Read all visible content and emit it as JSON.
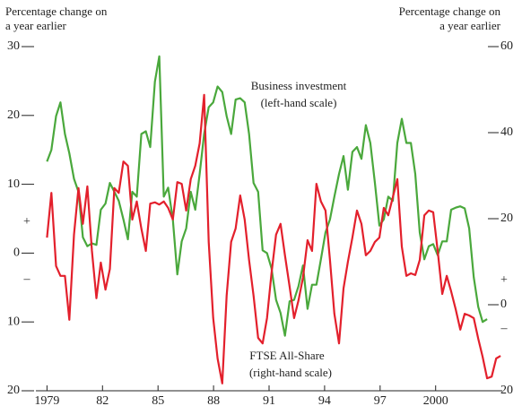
{
  "chart_data": {
    "type": "line",
    "ylabel": [
      "Percentage change on",
      "a year earlier"
    ],
    "y2label": [
      "Percentage change on",
      "a year earlier"
    ],
    "xlim": [
      1978.4,
      2003.6
    ],
    "xticks": [
      {
        "value": 1979,
        "label": "1979"
      },
      {
        "value": 1982,
        "label": "82"
      },
      {
        "value": 1985,
        "label": "85"
      },
      {
        "value": 1988,
        "label": "88"
      },
      {
        "value": 1991,
        "label": "91"
      },
      {
        "value": 1994,
        "label": "94"
      },
      {
        "value": 1997,
        "label": "97"
      },
      {
        "value": 2000,
        "label": "2000"
      }
    ],
    "ylim": [
      -20,
      30
    ],
    "yticks": [
      30,
      20,
      10,
      0,
      {
        "value": -10,
        "label": "10"
      },
      {
        "value": -20,
        "label": "20"
      }
    ],
    "y2lim": [
      -20,
      60
    ],
    "y2ticks": [
      60,
      40,
      20,
      0,
      {
        "value": -20,
        "label": "20"
      }
    ],
    "signs": {
      "left": [
        "+",
        "–"
      ],
      "right": [
        "+",
        "–"
      ]
    },
    "x": [
      1979.0,
      1979.24,
      1979.49,
      1979.73,
      1979.97,
      1980.21,
      1980.46,
      1980.7,
      1980.94,
      1981.18,
      1981.43,
      1981.67,
      1981.91,
      1982.16,
      1982.4,
      1982.64,
      1982.88,
      1983.13,
      1983.37,
      1983.61,
      1983.85,
      1984.1,
      1984.34,
      1984.58,
      1984.83,
      1985.07,
      1985.31,
      1985.55,
      1985.8,
      1986.04,
      1986.28,
      1986.52,
      1986.77,
      1987.01,
      1987.25,
      1987.49,
      1987.74,
      1987.98,
      1988.22,
      1988.47,
      1988.71,
      1988.95,
      1989.19,
      1989.44,
      1989.68,
      1989.92,
      1990.16,
      1990.41,
      1990.65,
      1990.89,
      1991.13,
      1991.38,
      1991.62,
      1991.86,
      1992.11,
      1992.35,
      1992.59,
      1992.83,
      1993.08,
      1993.32,
      1993.56,
      1993.8,
      1994.05,
      1994.29,
      1994.53,
      1994.78,
      1995.02,
      1995.26,
      1995.5,
      1995.75,
      1995.99,
      1996.23,
      1996.47,
      1996.72,
      1996.96,
      1997.2,
      1997.44,
      1997.69,
      1997.93,
      1998.17,
      1998.42,
      1998.66,
      1998.9,
      1999.14,
      1999.39,
      1999.63,
      1999.87,
      2000.11,
      2000.36,
      2000.6,
      2000.84,
      2001.08,
      2001.33,
      2001.57,
      2001.81,
      2002.06,
      2002.3,
      2002.54,
      2002.78,
      2003.03,
      2003.27,
      2003.51
    ],
    "series": [
      {
        "name": "Business investment",
        "scale_label": "(left-hand scale)",
        "color": "#4aa83c",
        "axis": "y",
        "values": [
          13.3,
          15.0,
          19.9,
          21.9,
          17.3,
          14.5,
          10.8,
          8.9,
          2.3,
          1.0,
          1.4,
          1.2,
          6.3,
          7.2,
          10.2,
          8.9,
          7.6,
          4.9,
          2.0,
          8.9,
          8.2,
          17.3,
          17.7,
          15.4,
          24.9,
          28.6,
          8.2,
          9.5,
          4.9,
          -3.1,
          1.7,
          3.6,
          8.9,
          6.3,
          11.5,
          17.3,
          21.2,
          21.9,
          24.2,
          23.4,
          19.9,
          17.3,
          22.3,
          22.5,
          21.9,
          17.3,
          10.2,
          8.9,
          0.4,
          0,
          -2.2,
          -6.8,
          -8.7,
          -12.0,
          -7.0,
          -6.8,
          -4.8,
          -1.8,
          -8.1,
          -4.6,
          -4.6,
          -0.9,
          3.0,
          4.9,
          8.2,
          11.5,
          14.1,
          9.2,
          14.7,
          15.4,
          13.7,
          18.6,
          16.0,
          10.2,
          4.0,
          4.9,
          8.2,
          7.6,
          16.0,
          19.5,
          16.0,
          16.0,
          11.5,
          3.0,
          -0.9,
          1.0,
          1.3,
          -0.3,
          1.7,
          1.7,
          6.3,
          6.6,
          6.8,
          6.5,
          3.6,
          -3.5,
          -7.8,
          -10.0,
          -9.6,
          null,
          null,
          null
        ]
      },
      {
        "name": "FTSE All-Share",
        "scale_label": "(right-hand scale)",
        "color": "#e3202c",
        "axis": "y2",
        "values": [
          15.6,
          26.0,
          9.0,
          6.7,
          6.7,
          -3.5,
          16.3,
          27.1,
          18.8,
          27.5,
          12.5,
          1.5,
          9.8,
          3.5,
          8.3,
          27.1,
          26.0,
          33.3,
          32.3,
          19.8,
          24.0,
          17.7,
          12.5,
          23.5,
          23.8,
          23.3,
          24.0,
          22.5,
          19.8,
          28.5,
          28.1,
          21.9,
          29.2,
          32.3,
          37.5,
          48.8,
          14.6,
          -3.1,
          -12.5,
          -18.3,
          2.1,
          14.6,
          17.7,
          25.4,
          19.8,
          10.4,
          2.1,
          -7.7,
          -9.0,
          -3.1,
          7.3,
          16.3,
          18.8,
          11.5,
          4.2,
          -3.1,
          1.0,
          6.3,
          15.0,
          12.5,
          28.1,
          24.0,
          21.9,
          10.4,
          -2.1,
          -9.0,
          3.8,
          10.0,
          15.6,
          21.9,
          18.8,
          11.5,
          12.5,
          14.6,
          15.6,
          22.5,
          20.8,
          25.0,
          29.2,
          13.5,
          6.7,
          7.3,
          6.9,
          10.4,
          20.8,
          21.9,
          21.5,
          12.5,
          2.5,
          6.7,
          3.1,
          -1.0,
          -5.8,
          -2.1,
          -2.5,
          -3.1,
          -7.9,
          -12.1,
          -17.1,
          -16.7,
          -12.5,
          -11.9
        ]
      }
    ]
  }
}
